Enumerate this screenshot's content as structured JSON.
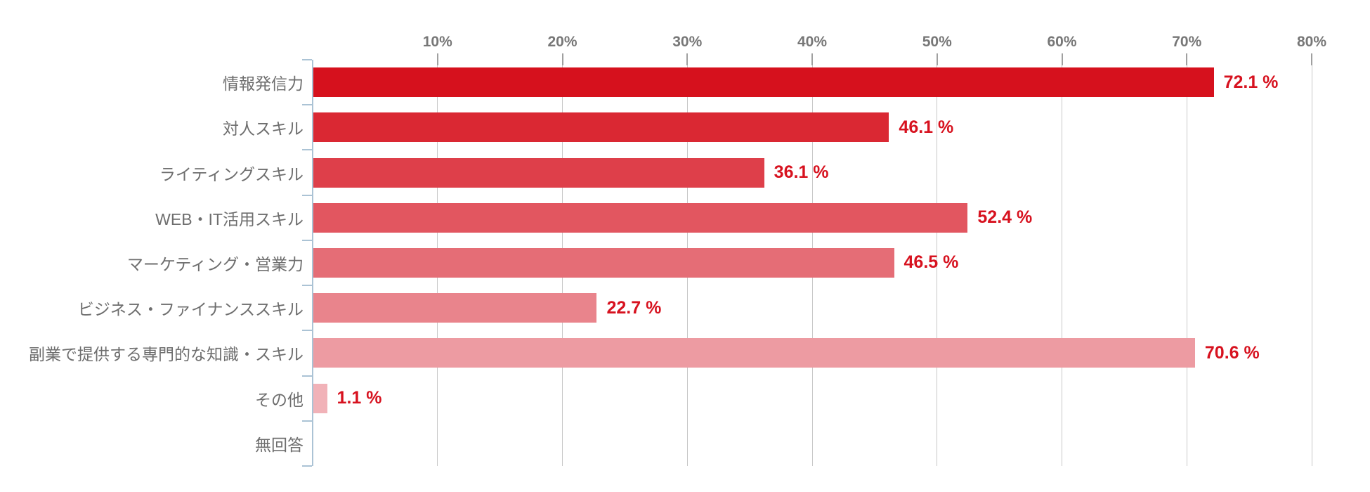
{
  "chart_data": {
    "type": "bar",
    "orientation": "horizontal",
    "title": "",
    "categories": [
      "情報発信力",
      "対人スキル",
      "ライティングスキル",
      "WEB・IT活用スキル",
      "マーケティング・営業力",
      "ビジネス・ファイナンススキル",
      "副業で提供する専門的な知識・スキル",
      "その他",
      "無回答"
    ],
    "values": [
      72.1,
      46.1,
      36.1,
      52.4,
      46.5,
      22.7,
      70.6,
      1.1,
      null
    ],
    "value_labels": [
      "72.1 %",
      "46.1 %",
      "36.1 %",
      "52.4 %",
      "46.5 %",
      "22.7 %",
      "70.6 %",
      "1.1 %",
      ""
    ],
    "x_axis": {
      "min": 0,
      "max": 80,
      "tick_step": 10,
      "tick_labels": [
        "10%",
        "20%",
        "30%",
        "40%",
        "50%",
        "60%",
        "70%",
        "80%"
      ],
      "position": "top"
    },
    "grid": true,
    "legend": false,
    "colors": {
      "bars": [
        "#d6111d",
        "#da2833",
        "#de3f4a",
        "#e25660",
        "#e56d76",
        "#e9848c",
        "#ed9ba2",
        "#f1b2b8"
      ],
      "value_label": "#d7121f",
      "category_label": "#6e6e6e",
      "tick_label": "#777777",
      "gridline": "#c8c8c8",
      "tick_mark": "#a0a0a0",
      "axis_line": "#abc3d5",
      "background": "#ffffff"
    }
  }
}
